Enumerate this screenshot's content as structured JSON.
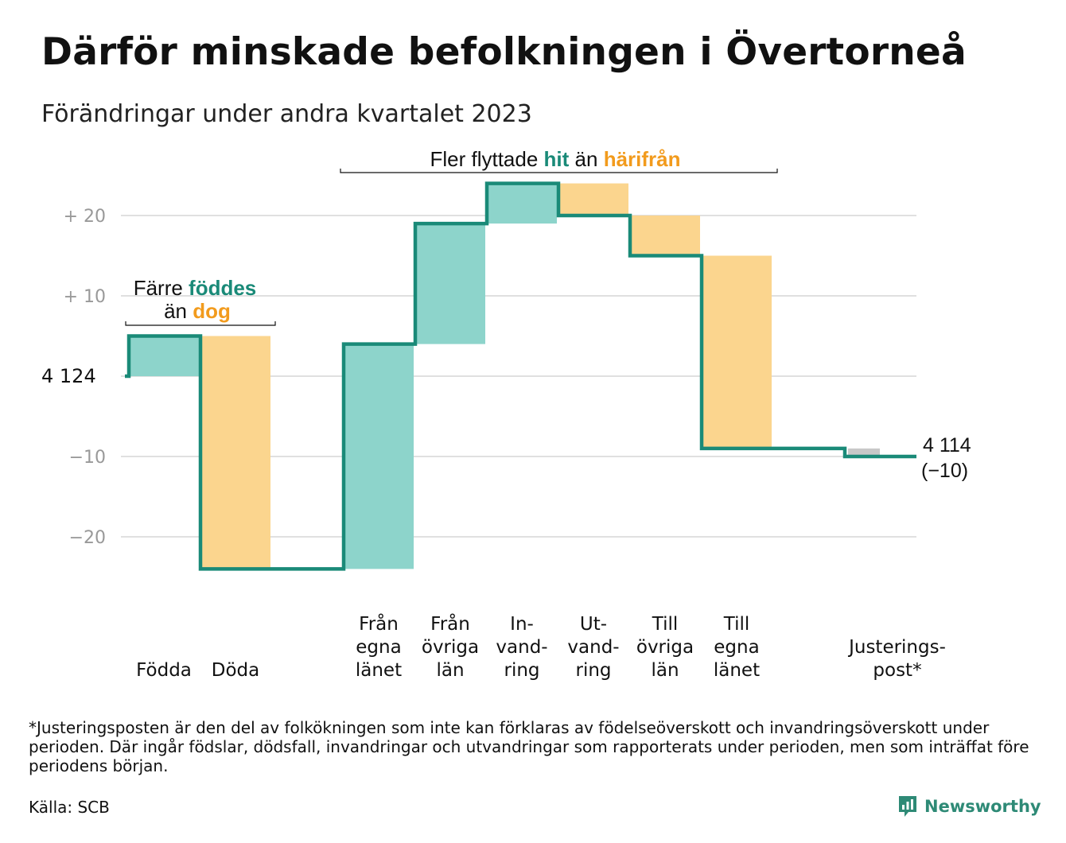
{
  "title": "Därför minskade befolkningen i Övertorneå",
  "subtitle": "Förändringar under andra kvartalet 2023",
  "footnote": "*Justeringsposten är den del av folkökningen som inte kan förklaras av födelseöverskott och invandringsöverskott under perioden. Där ingår födslar, dödsfall, invandringar och utvandringar som rapporterats under perioden, men som inträffat före periodens början.",
  "source": "Källa: SCB",
  "logo": {
    "text": "Newsworthy",
    "icon": "newsworthy-chart-icon",
    "color": "#2e8a76"
  },
  "colors": {
    "increase": "#8dd4cb",
    "decrease": "#fbd58e",
    "line": "#1a8a78",
    "adjustment": "#c8c8c8",
    "grid": "#e0e0e0",
    "tick": "#999999",
    "hit": "#1a8a78",
    "harifran": "#f29b1d"
  },
  "annotations": {
    "births_deaths": {
      "line1": "Färre ",
      "hl1": "föddes",
      "line2": "än ",
      "hl2": "dog"
    },
    "migration": {
      "pre": "Fler flyttade ",
      "hl1": "hit",
      "mid": " än ",
      "hl2": "härifrån"
    }
  },
  "chart_data": {
    "type": "waterfall",
    "start_value": 4124,
    "start_label": "4  124",
    "end_label": "4 114",
    "end_change_label": "(−10)",
    "yticks": [
      {
        "value": 20,
        "label": "+  20"
      },
      {
        "value": 10,
        "label": "+  10"
      },
      {
        "value": -10,
        "label": "−10"
      },
      {
        "value": -20,
        "label": "−20"
      }
    ],
    "ylim": [
      -26,
      25
    ],
    "grid": true,
    "categories": [
      {
        "label": [
          "Födda"
        ],
        "change": 5,
        "gap_after": false
      },
      {
        "label": [
          "Döda"
        ],
        "change": -29,
        "gap_after": true
      },
      {
        "label": [
          "Från",
          "egna",
          "länet"
        ],
        "change": 28,
        "gap_after": false
      },
      {
        "label": [
          "Från",
          "övriga",
          "län"
        ],
        "change": 15,
        "gap_after": false
      },
      {
        "label": [
          "In-",
          "vand-",
          "ring"
        ],
        "change": 5,
        "gap_after": false
      },
      {
        "label": [
          "Ut-",
          "vand-",
          "ring"
        ],
        "change": -4,
        "gap_after": false
      },
      {
        "label": [
          "Till",
          "övriga",
          "län"
        ],
        "change": -5,
        "gap_after": false
      },
      {
        "label": [
          "Till",
          "egna",
          "länet"
        ],
        "change": -24,
        "gap_after": true
      },
      {
        "label": [
          "Justerings-",
          "post*"
        ],
        "change": -1,
        "gap_after": false
      }
    ]
  }
}
